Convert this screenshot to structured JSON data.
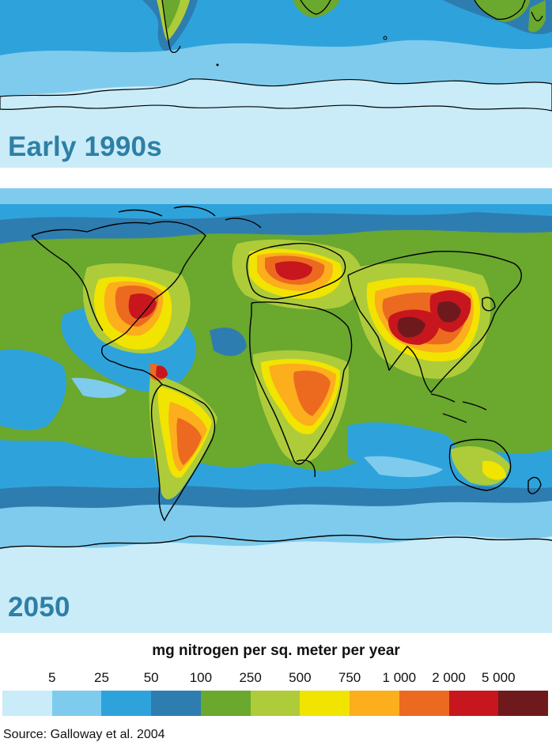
{
  "panels": {
    "top_label": "Early 1990s",
    "bottom_label": "2050"
  },
  "legend": {
    "title": "mg nitrogen per sq. meter per year",
    "ticks": [
      "5",
      "25",
      "50",
      "100",
      "250",
      "500",
      "750",
      "1 000",
      "2 000",
      "5 000"
    ],
    "colors": [
      "#c9ecf8",
      "#7fcbed",
      "#2ea3db",
      "#2e7db0",
      "#6aa82e",
      "#aecb3a",
      "#f1e400",
      "#fcae1c",
      "#ec6a1f",
      "#c8161e",
      "#6e1a1d"
    ]
  },
  "source": "Source: Galloway et al. 2004",
  "map_colors": {
    "ocean_light": "#c9ecf8",
    "ocean_mid": "#7fcbed",
    "ocean_blue": "#2ea3db",
    "ocean_dark": "#2e7db0",
    "green": "#6aa82e",
    "yellowgreen": "#aecb3a",
    "yellow": "#f1e400",
    "orange": "#fcae1c",
    "darkorange": "#ec6a1f",
    "red": "#c8161e",
    "maroon": "#6e1a1d",
    "coast": "#000000"
  }
}
